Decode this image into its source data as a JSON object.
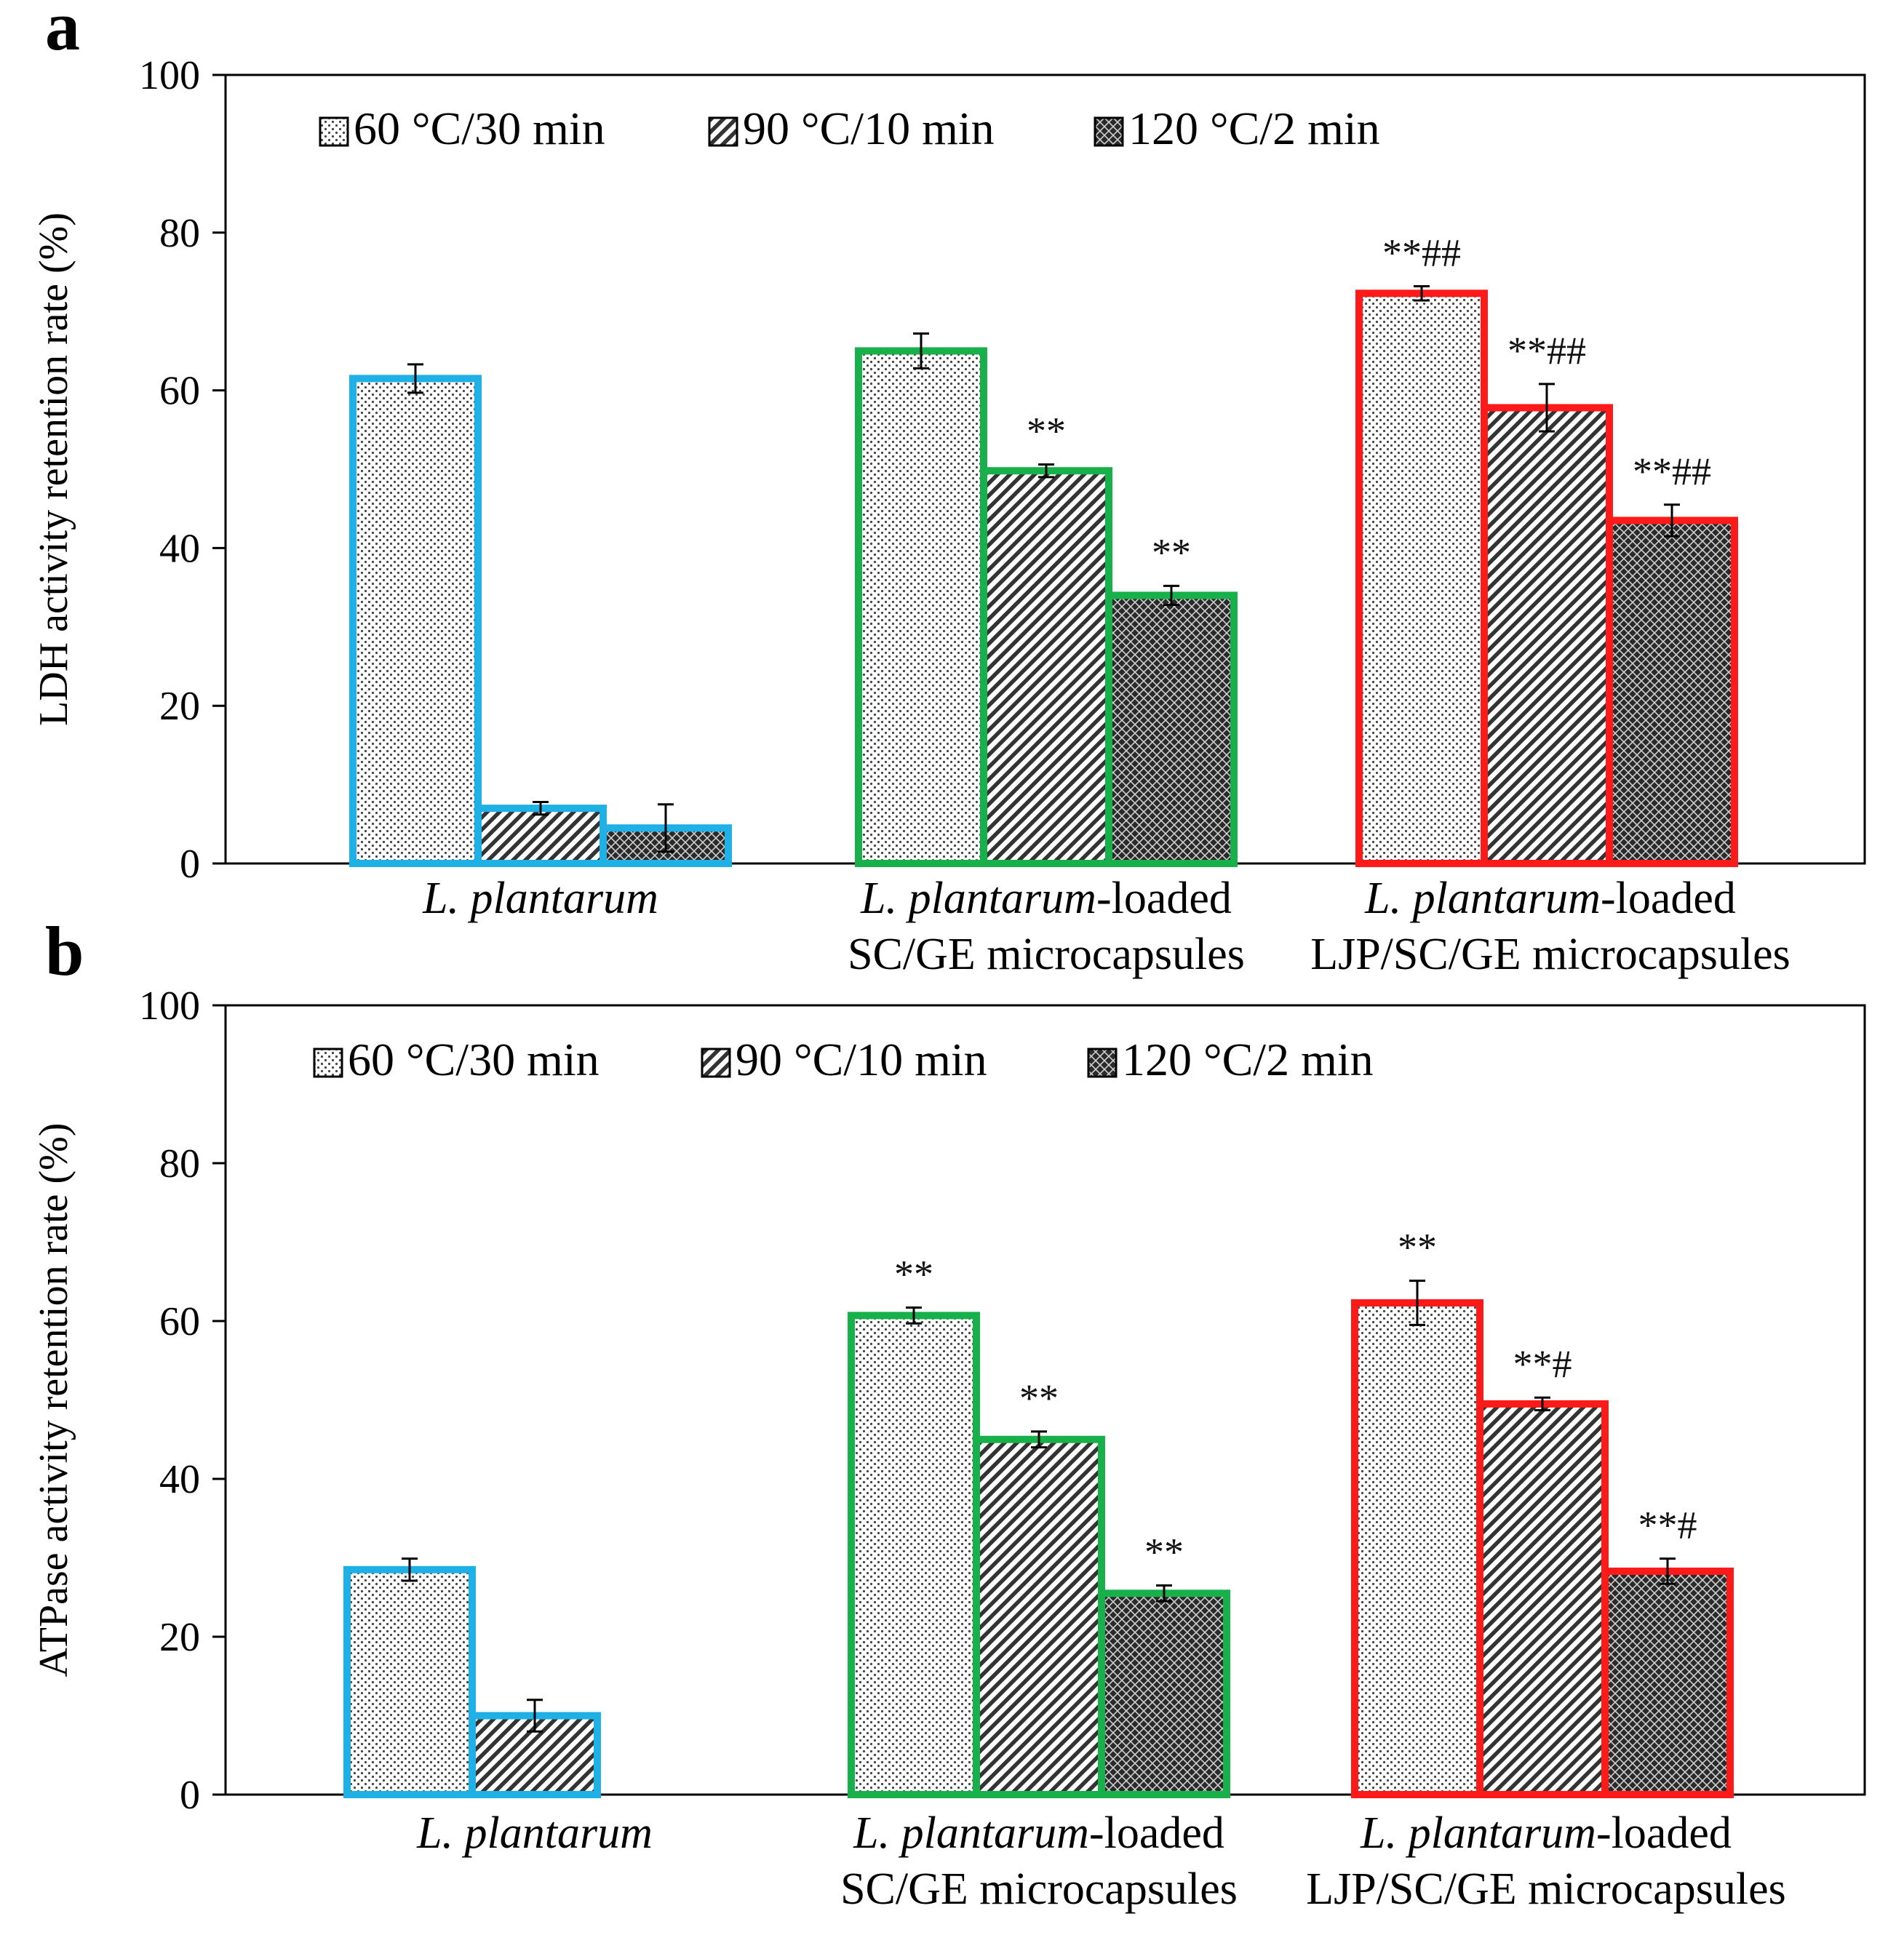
{
  "chart_data": [
    {
      "type": "bar",
      "panel_label": "a",
      "ylabel": "LDH activity retention rate (%)",
      "ylim": [
        0,
        100
      ],
      "yticks": [
        0,
        20,
        40,
        60,
        80,
        100
      ],
      "categories": [
        {
          "italic": "L. plantarum",
          "rest": "",
          "line2": ""
        },
        {
          "italic": "L. plantarum",
          "rest": "-loaded",
          "line2": "SC/GE microcapsules"
        },
        {
          "italic": "L. plantarum",
          "rest": "-loaded",
          "line2": "LJP/SC/GE microcapsules"
        }
      ],
      "group_colors": [
        "#1fb0e6",
        "#18b04a",
        "#ff1a1a"
      ],
      "legend_position": "top-left",
      "series": [
        {
          "name": "60 °C/30 min",
          "pattern": "dots",
          "values": [
            61.5,
            65,
            72.3
          ],
          "errors": [
            1.8,
            2.2,
            0.9
          ],
          "annotations": [
            "",
            "",
            "**##"
          ]
        },
        {
          "name": "90 °C/10 min",
          "pattern": "hatch",
          "values": [
            7,
            49.8,
            57.8
          ],
          "errors": [
            0.8,
            0.8,
            3.0
          ],
          "annotations": [
            "",
            "**",
            "**##"
          ]
        },
        {
          "name": "120 °C/2 min",
          "pattern": "cross",
          "values": [
            4.5,
            34,
            43.5
          ],
          "errors": [
            3.0,
            1.2,
            2.0
          ],
          "annotations": [
            "",
            "**",
            "**##"
          ]
        }
      ]
    },
    {
      "type": "bar",
      "panel_label": "b",
      "ylabel": "ATPase activity retention rate (%)",
      "ylim": [
        0,
        100
      ],
      "yticks": [
        0,
        20,
        40,
        60,
        80,
        100
      ],
      "categories": [
        {
          "italic": "L. plantarum",
          "rest": "",
          "line2": ""
        },
        {
          "italic": "L. plantarum",
          "rest": "-loaded",
          "line2": "SC/GE microcapsules"
        },
        {
          "italic": "L. plantarum",
          "rest": "-loaded",
          "line2": "LJP/SC/GE microcapsules"
        }
      ],
      "group_colors": [
        "#1fb0e6",
        "#18b04a",
        "#ff1a1a"
      ],
      "legend_position": "top-left",
      "series": [
        {
          "name": "60 °C/30 min",
          "pattern": "dots",
          "values": [
            28.5,
            60.7,
            62.3
          ],
          "errors": [
            1.4,
            1.0,
            2.8
          ],
          "annotations": [
            "",
            "**",
            "**"
          ]
        },
        {
          "name": "90 °C/10 min",
          "pattern": "hatch",
          "values": [
            10,
            45,
            49.5
          ],
          "errors": [
            2.0,
            1.0,
            0.8
          ],
          "annotations": [
            "",
            "**",
            "**#"
          ]
        },
        {
          "name": "120 °C/2 min",
          "pattern": "cross",
          "values": [
            null,
            25.5,
            28.3
          ],
          "errors": [
            null,
            1.0,
            1.6
          ],
          "annotations": [
            "",
            "**",
            "**#"
          ]
        }
      ]
    }
  ]
}
